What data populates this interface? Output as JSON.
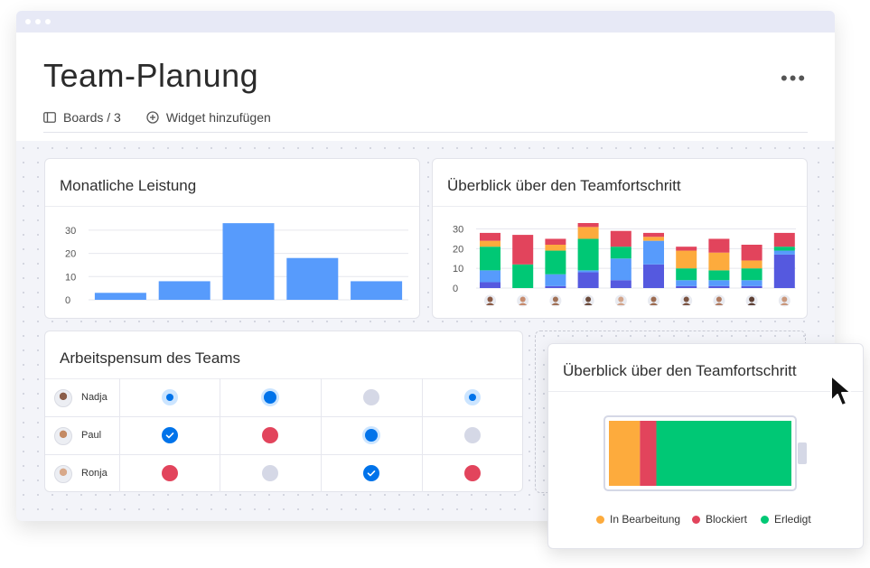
{
  "header": {
    "title": "Team-Planung",
    "more_label": "•••",
    "boards_label": "Boards / 3",
    "add_widget_label": "Widget hinzufügen"
  },
  "cards": {
    "monthly": {
      "title": "Monatliche Leistung"
    },
    "progress": {
      "title": "Überblick über den Teamfortschritt"
    },
    "workload": {
      "title": "Arbeitspensum des Teams",
      "people": [
        "Nadja",
        "Paul",
        "Ronja"
      ]
    },
    "battery": {
      "title": "Überblick über den Teamfortschritt",
      "legend": [
        "In Bearbeitung",
        "Blockiert",
        "Erledigt"
      ]
    }
  },
  "colors": {
    "blue": "#579bfc",
    "orange": "#fdab3d",
    "red": "#e2445c",
    "green": "#00c875",
    "purple": "#5559df",
    "status_blue": "#0073ea",
    "status_gray": "#d5d8e6"
  },
  "chart_data": [
    {
      "type": "bar",
      "title": "Monatliche Leistung",
      "categories": [
        "",
        "",
        "",
        "",
        ""
      ],
      "values": [
        3,
        8,
        33,
        18,
        8
      ],
      "yticks": [
        "0",
        "10",
        "20",
        "30"
      ],
      "ylim": [
        0,
        35
      ],
      "grid": true
    },
    {
      "type": "bar",
      "stacked": true,
      "title": "Überblick über den Teamfortschritt",
      "categories": [
        "",
        "",
        "",
        "",
        "",
        "",
        "",
        "",
        "",
        ""
      ],
      "yticks": [
        "0",
        "10",
        "20",
        "30"
      ],
      "ylim": [
        0,
        33
      ],
      "series": [
        {
          "values": [
            3,
            0,
            1,
            8,
            4,
            12,
            1,
            1,
            1,
            17
          ]
        },
        {
          "values": [
            6,
            0,
            6,
            1,
            11,
            12,
            3,
            3,
            3,
            2
          ]
        },
        {
          "values": [
            12,
            12,
            12,
            16,
            6,
            0,
            6,
            5,
            6,
            2
          ]
        },
        {
          "values": [
            3,
            0,
            3,
            6,
            0,
            2,
            9,
            9,
            4,
            0
          ]
        },
        {
          "values": [
            4,
            15,
            3,
            2,
            8,
            2,
            2,
            7,
            8,
            7
          ]
        }
      ]
    },
    {
      "type": "bar",
      "stacked": true,
      "title": "Überblick über den Teamfortschritt",
      "categories": [
        ""
      ],
      "series": [
        {
          "name": "In Bearbeitung",
          "values": [
            17
          ]
        },
        {
          "name": "Blockiert",
          "values": [
            9
          ]
        },
        {
          "name": "Erledigt",
          "values": [
            74
          ]
        }
      ],
      "legend": "bottom"
    }
  ]
}
